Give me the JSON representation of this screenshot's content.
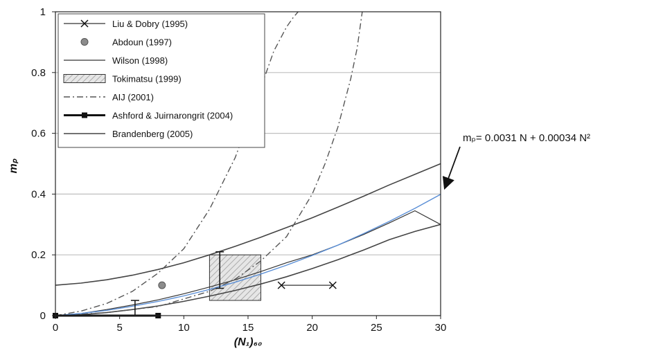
{
  "chart_data": {
    "type": "line",
    "xlabel": "(N₁)₆₀",
    "ylabel": "mₚ",
    "xlim": [
      0,
      30
    ],
    "ylim": [
      0,
      1
    ],
    "x_ticks": [
      "0",
      "5",
      "10",
      "15",
      "20",
      "25",
      "30"
    ],
    "y_ticks": [
      "0",
      "0.2",
      "0.4",
      "0.6",
      "0.8",
      "1"
    ],
    "grid": "horizontal",
    "legend_position": "top-left",
    "series": [
      {
        "name": "Liu & Dobry (1995)",
        "marker": "x",
        "x": [
          17.6,
          21.6
        ],
        "y": [
          0.1,
          0.1
        ]
      },
      {
        "name": "Abdoun (1997)",
        "marker": "circle",
        "x": [
          8.3
        ],
        "y": [
          0.1
        ]
      },
      {
        "name": "Wilson (1998)",
        "x": [
          0,
          2,
          4,
          6,
          8,
          10,
          12,
          14,
          16,
          18,
          20,
          22,
          24,
          26,
          28,
          30
        ],
        "y": [
          0.0,
          0.007,
          0.02,
          0.035,
          0.052,
          0.072,
          0.094,
          0.118,
          0.145,
          0.174,
          0.2,
          0.232,
          0.267,
          0.305,
          0.345,
          0.3
        ]
      },
      {
        "name": "Tokimatsu (1999)",
        "type": "box",
        "x_range": [
          12,
          16
        ],
        "y_range": [
          0.05,
          0.2
        ],
        "error_bar": {
          "x": 12.8,
          "y": [
            0.09,
            0.21
          ]
        }
      },
      {
        "name": "AIJ (2001)",
        "x": [
          0,
          2,
          4,
          6,
          8,
          10,
          12,
          14,
          16,
          17,
          18,
          18.5,
          18.9
        ],
        "y": [
          0.0,
          0.015,
          0.04,
          0.08,
          0.14,
          0.22,
          0.35,
          0.52,
          0.75,
          0.87,
          0.95,
          0.98,
          1.0
        ]
      },
      {
        "name": "AIJ (2001)",
        "x": [
          0,
          4,
          8,
          12,
          14,
          16,
          18,
          20,
          21,
          22,
          23,
          23.5,
          23.9
        ],
        "y": [
          0.0,
          0.01,
          0.03,
          0.08,
          0.12,
          0.18,
          0.26,
          0.4,
          0.5,
          0.62,
          0.78,
          0.88,
          1.0
        ]
      },
      {
        "name": "Ashford & Juirnarongrit (2004)",
        "marker": "square",
        "x": [
          0,
          8
        ],
        "y": [
          0,
          0
        ],
        "error_bar": {
          "x": 6.2,
          "y": [
            0,
            0.05
          ]
        }
      },
      {
        "name": "Brandenberg (2005)",
        "x": [
          0,
          2,
          4,
          6,
          8,
          10,
          12,
          14,
          16,
          18,
          20,
          22,
          24,
          26,
          28,
          30
        ],
        "y": [
          0.1,
          0.107,
          0.118,
          0.133,
          0.152,
          0.174,
          0.2,
          0.228,
          0.258,
          0.29,
          0.322,
          0.357,
          0.393,
          0.43,
          0.465,
          0.5
        ]
      },
      {
        "name": "Brandenberg (2005)",
        "x": [
          0,
          2,
          4,
          6,
          8,
          10,
          12,
          14,
          16,
          18,
          20,
          22,
          24,
          26,
          28,
          30
        ],
        "y": [
          0.0,
          0.003,
          0.01,
          0.02,
          0.032,
          0.047,
          0.064,
          0.083,
          0.104,
          0.128,
          0.155,
          0.184,
          0.216,
          0.25,
          0.277,
          0.3
        ]
      },
      {
        "name": "fit",
        "color": "#5b8fd6",
        "x": [
          0,
          2,
          4,
          6,
          8,
          10,
          12,
          14,
          16,
          18,
          20,
          22,
          24,
          26,
          28,
          30
        ],
        "y": [
          0.0,
          0.0074,
          0.0174,
          0.031,
          0.0466,
          0.065,
          0.086,
          0.11,
          0.137,
          0.166,
          0.198,
          0.232,
          0.27,
          0.31,
          0.353,
          0.399
        ]
      }
    ],
    "annotation": {
      "text": "mₚ= 0.0031 N + 0.00034 N²"
    }
  },
  "colors": {
    "fit_line": "#5b8fd6",
    "grid": "#bfbfbf",
    "curve": "#444444",
    "marker_fill": "#8c8c8c",
    "hatch_box": "#cccccc"
  }
}
